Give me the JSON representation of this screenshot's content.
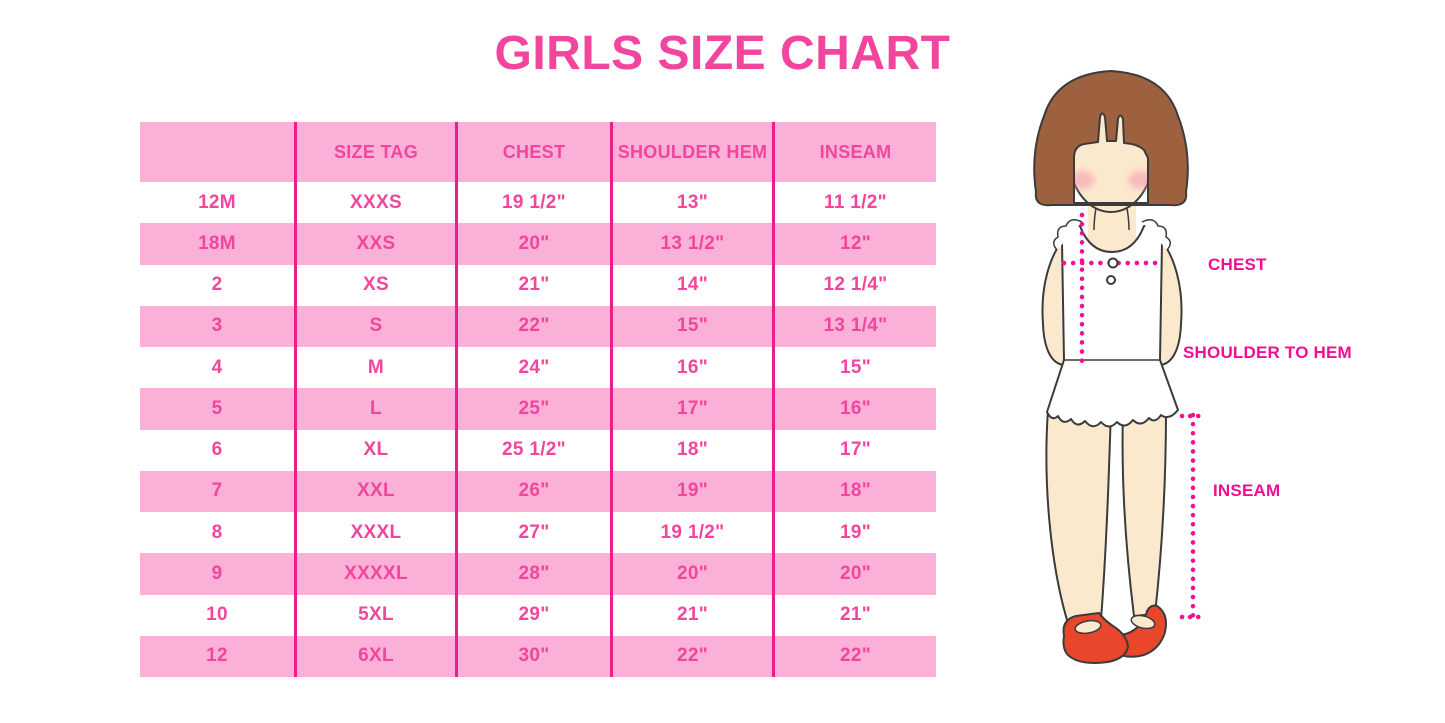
{
  "title": "GIRLS SIZE CHART",
  "chart_data": {
    "type": "table",
    "title": "GIRLS SIZE CHART",
    "columns": [
      "",
      "SIZE TAG",
      "CHEST",
      "SHOULDER HEM",
      "INSEAM"
    ],
    "rows": [
      [
        "12M",
        "XXXS",
        "19 1/2\"",
        "13\"",
        "11 1/2\""
      ],
      [
        "18M",
        "XXS",
        "20\"",
        "13 1/2\"",
        "12\""
      ],
      [
        "2",
        "XS",
        "21\"",
        "14\"",
        "12 1/4\""
      ],
      [
        "3",
        "S",
        "22\"",
        "15\"",
        "13 1/4\""
      ],
      [
        "4",
        "M",
        "24\"",
        "16\"",
        "15\""
      ],
      [
        "5",
        "L",
        "25\"",
        "17\"",
        "16\""
      ],
      [
        "6",
        "XL",
        "25 1/2\"",
        "18\"",
        "17\""
      ],
      [
        "7",
        "XXL",
        "26\"",
        "19\"",
        "18\""
      ],
      [
        "8",
        "XXXL",
        "27\"",
        "19 1/2\"",
        "19\""
      ],
      [
        "9",
        "XXXXL",
        "28\"",
        "20\"",
        "20\""
      ],
      [
        "10",
        "5XL",
        "29\"",
        "21\"",
        "21\""
      ],
      [
        "12",
        "6XL",
        "30\"",
        "22\"",
        "22\""
      ]
    ],
    "annotations": [
      "CHEST",
      "SHOULDER TO HEM",
      "INSEAM"
    ],
    "layout": {
      "row_striping": "alternating pink/white",
      "header_background": "pink",
      "legend": "none",
      "grid": "vertical magenta dividers only"
    }
  },
  "colors": {
    "row_pink": "#FBB1D7",
    "divider_magenta": "#EC1E8E",
    "text_pink": "#F1459E",
    "label_magenta": "#F30D92",
    "dotted_line_magenta": "#F2108E",
    "hair_brown": "#9D6140",
    "skin": "#FBE9CD",
    "shoe_red": "#E8472B"
  }
}
